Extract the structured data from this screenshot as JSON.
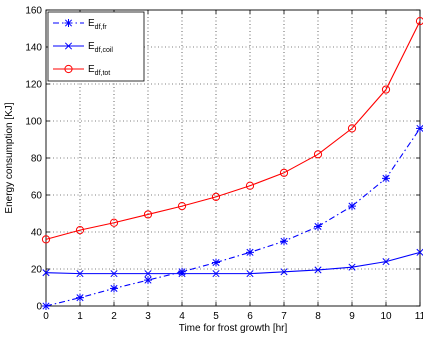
{
  "chart_data": {
    "type": "line",
    "xlabel": "Time for frost growth [hr]",
    "ylabel": "Energy consumption [KJ]",
    "xlim": [
      0,
      11
    ],
    "ylim": [
      0,
      160
    ],
    "x": [
      0,
      1,
      2,
      3,
      4,
      5,
      6,
      7,
      8,
      9,
      10,
      11
    ],
    "xticks": [
      "0",
      "1",
      "2",
      "3",
      "4",
      "5",
      "6",
      "7",
      "8",
      "9",
      "10",
      "11"
    ],
    "yticks": [
      "0",
      "20",
      "40",
      "60",
      "80",
      "100",
      "120",
      "140",
      "160"
    ],
    "grid": true,
    "legend_position": "top-left",
    "series": [
      {
        "name_main": "E",
        "name_sub": "df,fr",
        "color": "#0000ff",
        "line": "dash-dot",
        "marker": "asterisk",
        "values": [
          0,
          4.5,
          9.5,
          14,
          18.5,
          23.5,
          29,
          35,
          43,
          54,
          69,
          96
        ]
      },
      {
        "name_main": "E",
        "name_sub": "df,coil",
        "color": "#0000ff",
        "line": "solid",
        "marker": "x",
        "values": [
          18,
          17.5,
          17.5,
          17.5,
          17.5,
          17.5,
          17.5,
          18.5,
          19.5,
          21,
          24,
          29
        ]
      },
      {
        "name_main": "E",
        "name_sub": "df,tot",
        "color": "#ff0000",
        "line": "solid",
        "marker": "circle",
        "values": [
          36,
          41,
          45,
          49.5,
          54,
          59,
          65,
          72,
          82,
          96,
          117,
          154
        ]
      }
    ]
  }
}
